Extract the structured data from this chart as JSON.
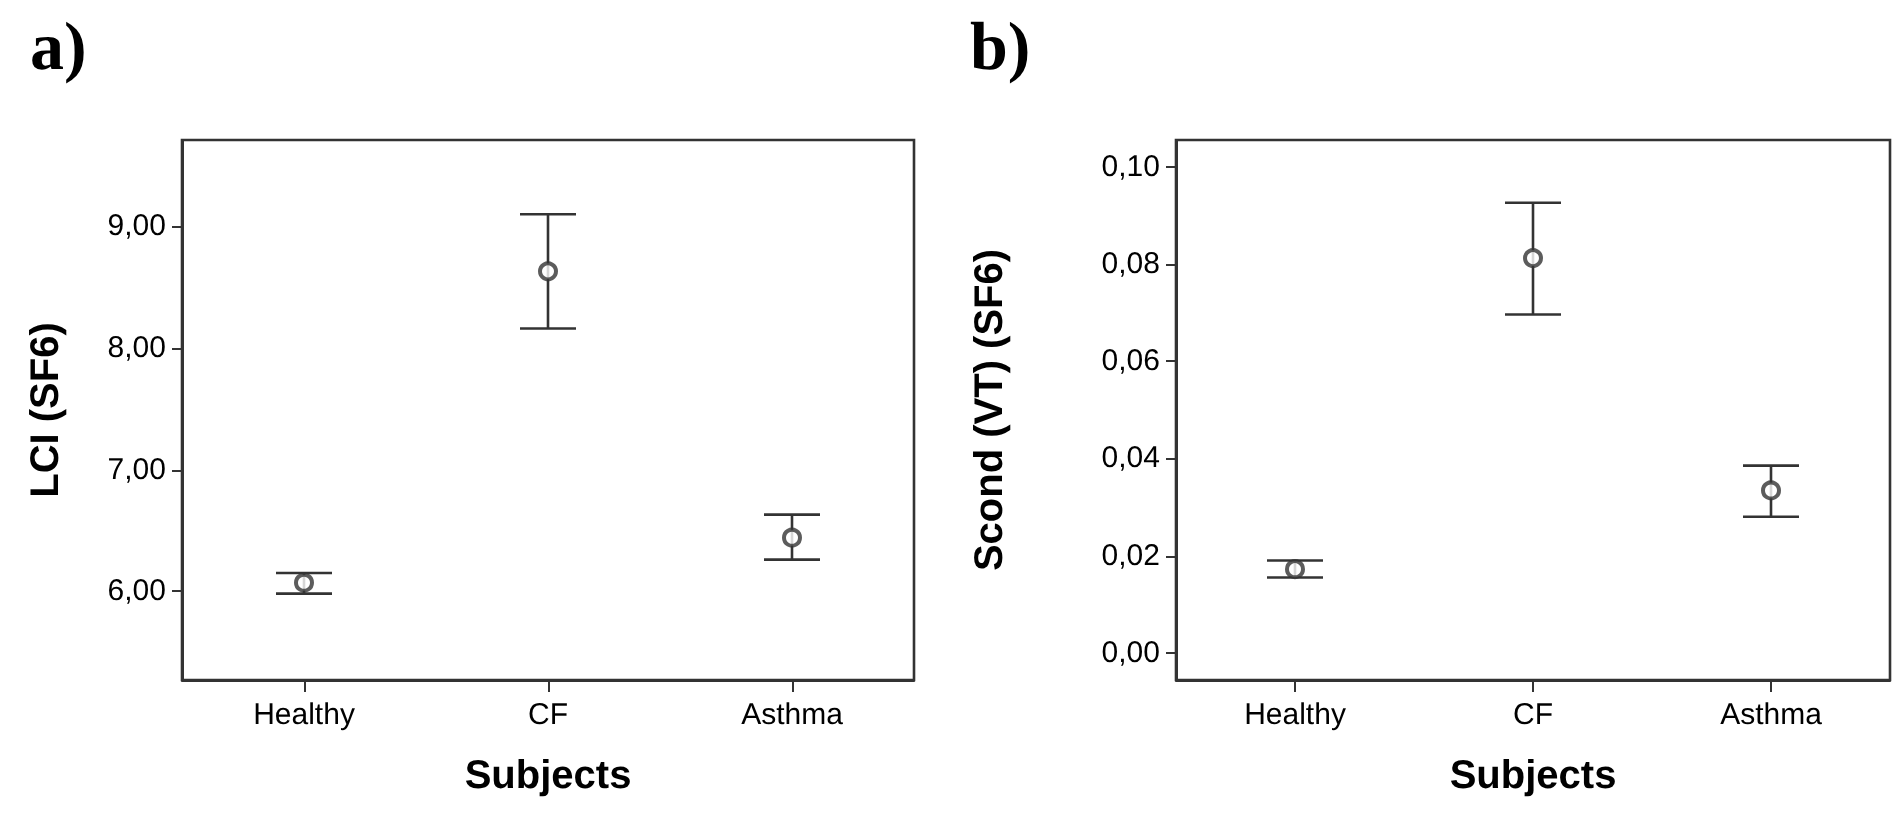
{
  "chart_data": [
    {
      "type": "scatter",
      "title": "a)",
      "xlabel": "Subjects",
      "ylabel": "LCI (SF6)",
      "categories": [
        "Healthy",
        "CF",
        "Asthma"
      ],
      "marker": "circle",
      "grid": false,
      "series": [
        {
          "color": "#333333",
          "values": [
            6.07,
            8.63,
            6.44
          ],
          "errors": [
            [
              5.98,
              6.15
            ],
            [
              8.16,
              9.1
            ],
            [
              6.26,
              6.63
            ]
          ]
        }
      ],
      "ylim": [
        5.27,
        9.71
      ],
      "yticks": [
        {
          "value": 6,
          "label": "6,00"
        },
        {
          "value": 7,
          "label": "7,00"
        },
        {
          "value": 8,
          "label": "8,00"
        },
        {
          "value": 9,
          "label": "9,00"
        }
      ]
    },
    {
      "type": "scatter",
      "title": "b)",
      "xlabel": "Subjects",
      "ylabel": "Scond (VT) (SF6)",
      "categories": [
        "Healthy",
        "CF",
        "Asthma"
      ],
      "marker": "circle",
      "grid": false,
      "series": [
        {
          "color": "#333333",
          "values": [
            0.0172,
            0.0812,
            0.0334
          ],
          "errors": [
            [
              0.0155,
              0.019
            ],
            [
              0.0696,
              0.0926
            ],
            [
              0.028,
              0.0385
            ]
          ]
        }
      ],
      "ylim": [
        -0.0056,
        0.1055
      ],
      "yticks": [
        {
          "value": 0,
          "label": "0,00"
        },
        {
          "value": 0.02,
          "label": "0,02"
        },
        {
          "value": 0.04,
          "label": "0,04"
        },
        {
          "value": 0.06,
          "label": "0,06"
        },
        {
          "value": 0.08,
          "label": "0,08"
        },
        {
          "value": 0.1,
          "label": "0,10"
        }
      ]
    }
  ]
}
